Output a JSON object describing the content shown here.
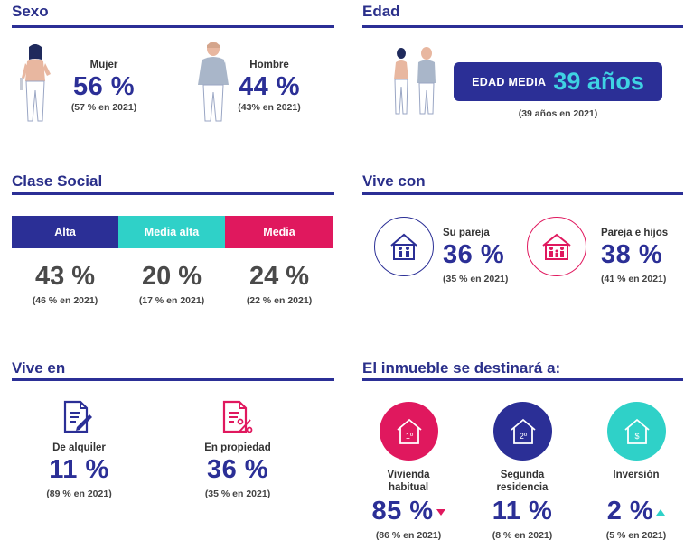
{
  "sexo": {
    "title": "Sexo",
    "mujer": {
      "label": "Mujer",
      "value": "56 %",
      "prev": "(57 % en 2021)"
    },
    "hombre": {
      "label": "Hombre",
      "value": "44 %",
      "prev": "(43% en 2021)"
    }
  },
  "edad": {
    "title": "Edad",
    "label": "EDAD MEDIA",
    "value": "39 años",
    "prev": "(39 años en 2021)"
  },
  "clase_social": {
    "title": "Clase Social",
    "items": [
      {
        "label": "Alta",
        "value": "43 %",
        "prev": "(46 % en 2021)",
        "color": "#2b2f96"
      },
      {
        "label": "Media alta",
        "value": "20 %",
        "prev": "(17 % en 2021)",
        "color": "#2fd1c8"
      },
      {
        "label": "Media",
        "value": "24 %",
        "prev": "(22 % en 2021)",
        "color": "#e0185e"
      }
    ]
  },
  "vive_con": {
    "title": "Vive con",
    "items": [
      {
        "label": "Su pareja",
        "value": "36 %",
        "prev": "(35 % en 2021)",
        "icon": "house-couple-icon",
        "color": "#2b2f96"
      },
      {
        "label": "Pareja e hijos",
        "value": "38 %",
        "prev": "(41 % en 2021)",
        "icon": "house-family-icon",
        "color": "#e0185e"
      }
    ]
  },
  "vive_en": {
    "title": "Vive en",
    "items": [
      {
        "label": "De alquiler",
        "value": "11 %",
        "prev": "(89 % en 2021)",
        "icon": "document-edit-icon",
        "color": "#2b2f96"
      },
      {
        "label": "En propiedad",
        "value": "36 %",
        "prev": "(35 % en 2021)",
        "icon": "document-percent-icon",
        "color": "#e0185e"
      }
    ]
  },
  "destino": {
    "title": "El inmueble se destinará a:",
    "items": [
      {
        "label_line1": "Vivienda",
        "label_line2": "habitual",
        "value": "85 %",
        "prev": "(86 % en 2021)",
        "house_text": "1º",
        "color": "#e0185e",
        "trend": "down"
      },
      {
        "label_line1": "Segunda",
        "label_line2": "residencia",
        "value": "11 %",
        "prev": "(8 % en 2021)",
        "house_text": "2º",
        "color": "#2b2f96",
        "trend": "none"
      },
      {
        "label_line1": "Inversión",
        "label_line2": "",
        "value": "2 %",
        "prev": "(5 % en 2021)",
        "house_text": "$",
        "color": "#2fd1c8",
        "trend": "up"
      }
    ]
  }
}
